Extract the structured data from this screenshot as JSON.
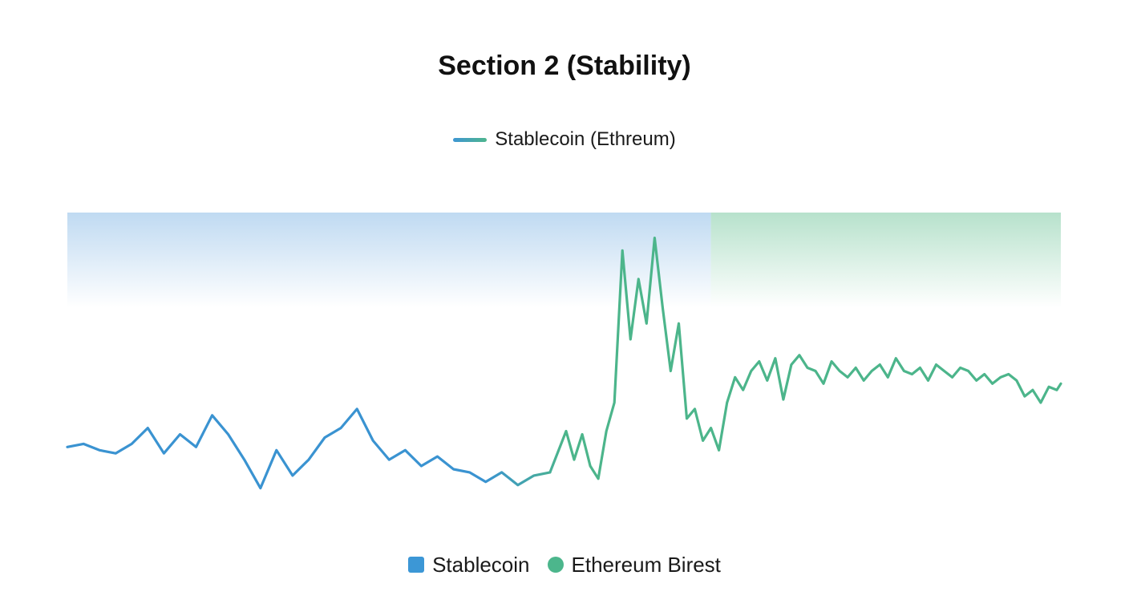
{
  "chart_data": {
    "type": "line",
    "title": "Section 2 (Stability)",
    "xlabel": "",
    "ylabel": "",
    "xlim": [
      0,
      247
    ],
    "ylim": [
      0,
      100
    ],
    "grid": false,
    "legend_top": {
      "label": "Stablecoin (Ethreum)",
      "placement": "top-center"
    },
    "legend_bottom": {
      "placement": "bottom-center",
      "entries": [
        {
          "label": "Stablecoin",
          "shape": "square",
          "color": "#3c97d6"
        },
        {
          "label": "Ethereum Birest",
          "shape": "circle",
          "color": "#4cb68c"
        }
      ]
    },
    "colors": {
      "stablecoin": "#3a93d1",
      "ethereum": "#4cb58b",
      "top_band_blue": "#2f7fc1",
      "top_band_green": "#47b27c",
      "fill_blue": "#bcd8f1",
      "fill_green": "#b3e0c9"
    },
    "reference_line": {
      "y": 100
    },
    "shaded_regions": [
      {
        "name": "stablecoin-region",
        "x": [
          0,
          160
        ],
        "y": [
          70,
          100
        ]
      },
      {
        "name": "ethereum-region",
        "x": [
          160,
          247
        ],
        "y": [
          70,
          100
        ]
      }
    ],
    "series": [
      {
        "name": "Stablecoin",
        "x": [
          0,
          4,
          8,
          12,
          16,
          20,
          24,
          28,
          32,
          36,
          40,
          44,
          48,
          52,
          56,
          60,
          64,
          68,
          72,
          76,
          80,
          84,
          88,
          92,
          96,
          100,
          104,
          108,
          112,
          116,
          120
        ],
        "y": [
          26,
          27,
          25,
          24,
          27,
          32,
          24,
          30,
          26,
          36,
          30,
          22,
          13,
          25,
          17,
          22,
          29,
          32,
          38,
          28,
          22,
          25,
          20,
          23,
          19,
          18,
          15,
          18,
          14,
          17,
          18
        ]
      },
      {
        "name": "Ethereum Birest",
        "x": [
          120,
          124,
          126,
          128,
          130,
          132,
          134,
          136,
          138,
          140,
          142,
          144,
          146,
          148,
          150,
          152,
          154,
          156,
          158,
          160,
          162,
          164,
          166,
          168,
          170,
          172,
          174,
          176,
          178,
          180,
          182,
          184,
          186,
          188,
          190,
          192,
          194,
          196,
          198,
          200,
          202,
          204,
          206,
          208,
          210,
          212,
          214,
          216,
          218,
          220,
          222,
          224,
          226,
          228,
          230,
          232,
          234,
          236,
          238,
          240,
          242,
          244,
          246,
          247
        ],
        "y": [
          18,
          31,
          22,
          30,
          20,
          16,
          31,
          40,
          88,
          60,
          79,
          65,
          92,
          70,
          50,
          65,
          35,
          38,
          28,
          32,
          25,
          40,
          48,
          44,
          50,
          53,
          47,
          54,
          41,
          52,
          55,
          51,
          50,
          46,
          53,
          50,
          48,
          51,
          47,
          50,
          52,
          48,
          54,
          50,
          49,
          51,
          47,
          52,
          50,
          48,
          51,
          50,
          47,
          49,
          46,
          48,
          49,
          47,
          42,
          44,
          40,
          45,
          44,
          46
        ]
      }
    ]
  }
}
